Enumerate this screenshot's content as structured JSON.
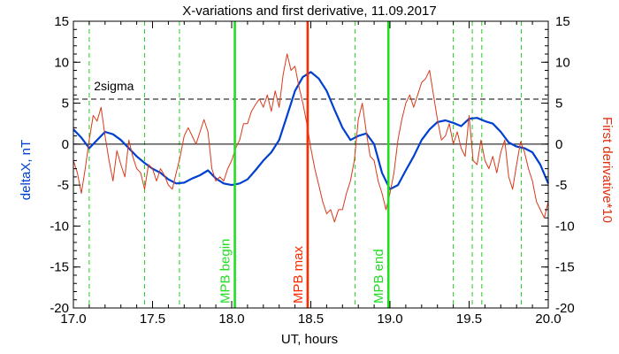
{
  "chart_data": {
    "type": "line",
    "title": "X-variations and first derivative, 11.09.2017",
    "xlabel": "UT, hours",
    "ylabel_left": "deltaX, nT",
    "ylabel_right": "First derivative*10",
    "xlim": [
      17.0,
      20.0
    ],
    "ylim": [
      -20,
      15
    ],
    "x_ticks": [
      "17.0",
      "17.5",
      "18.0",
      "18.5",
      "19.0",
      "19.5",
      "20.0"
    ],
    "y_ticks": [
      "-20",
      "-15",
      "-10",
      "-5",
      "0",
      "5",
      "10",
      "15"
    ],
    "sigma_label": "2sigma",
    "sigma_level": 5.5,
    "grid": false,
    "colors": {
      "deltaX": "#0040d0",
      "derivative": "#d83a1a",
      "mpb_bounds": "#22dd22",
      "mpb_max": "#ff2a00",
      "dashed_green": "#22cc22",
      "sigma": "#000000"
    },
    "vertical_lines": [
      {
        "x": 18.02,
        "label": "MPB begin",
        "kind": "bound"
      },
      {
        "x": 18.48,
        "label": "MPB max",
        "kind": "max"
      },
      {
        "x": 18.99,
        "label": "MPB end",
        "kind": "bound"
      }
    ],
    "dashed_markers": [
      17.1,
      17.45,
      17.67,
      18.78,
      19.4,
      19.52,
      19.58,
      19.83
    ],
    "series": [
      {
        "key": "deltaX",
        "axis": "left",
        "x": [
          17.0,
          17.05,
          17.1,
          17.15,
          17.2,
          17.25,
          17.3,
          17.35,
          17.4,
          17.45,
          17.5,
          17.55,
          17.6,
          17.65,
          17.7,
          17.75,
          17.8,
          17.85,
          17.9,
          17.95,
          18.0,
          18.05,
          18.1,
          18.15,
          18.2,
          18.25,
          18.3,
          18.35,
          18.4,
          18.45,
          18.5,
          18.55,
          18.6,
          18.65,
          18.7,
          18.75,
          18.8,
          18.85,
          18.9,
          18.95,
          19.0,
          19.05,
          19.1,
          19.15,
          19.2,
          19.25,
          19.3,
          19.35,
          19.4,
          19.45,
          19.5,
          19.55,
          19.6,
          19.65,
          19.7,
          19.75,
          19.8,
          19.85,
          19.9,
          19.95,
          20.0
        ],
        "y": [
          1.8,
          0.8,
          -0.5,
          0.5,
          1.5,
          1.2,
          0.5,
          -0.5,
          -1.5,
          -2.3,
          -3.0,
          -3.5,
          -4.3,
          -4.8,
          -4.7,
          -4.2,
          -3.8,
          -3.2,
          -4.2,
          -4.8,
          -5.0,
          -4.8,
          -4.3,
          -3.2,
          -2.0,
          -1.0,
          0.5,
          3.5,
          6.5,
          8.2,
          8.8,
          8.0,
          6.5,
          4.2,
          2.0,
          0.5,
          1.0,
          1.3,
          0.0,
          -3.5,
          -5.5,
          -5.0,
          -3.2,
          -1.5,
          0.5,
          1.8,
          2.7,
          2.9,
          2.6,
          2.2,
          3.1,
          3.2,
          2.8,
          2.5,
          1.5,
          0.2,
          -0.3,
          -0.5,
          -1.0,
          -2.5,
          -4.8
        ]
      },
      {
        "key": "derivative",
        "axis": "right",
        "x": [
          17.0,
          17.025,
          17.05,
          17.075,
          17.1,
          17.125,
          17.15,
          17.175,
          17.2,
          17.225,
          17.25,
          17.275,
          17.3,
          17.325,
          17.35,
          17.375,
          17.4,
          17.425,
          17.45,
          17.475,
          17.5,
          17.525,
          17.55,
          17.575,
          17.6,
          17.625,
          17.65,
          17.675,
          17.7,
          17.725,
          17.75,
          17.775,
          17.8,
          17.825,
          17.85,
          17.875,
          17.9,
          17.925,
          17.95,
          17.975,
          18.0,
          18.025,
          18.05,
          18.075,
          18.1,
          18.125,
          18.15,
          18.175,
          18.2,
          18.225,
          18.25,
          18.275,
          18.3,
          18.325,
          18.35,
          18.375,
          18.4,
          18.425,
          18.45,
          18.475,
          18.5,
          18.525,
          18.55,
          18.575,
          18.6,
          18.625,
          18.65,
          18.675,
          18.7,
          18.725,
          18.75,
          18.775,
          18.8,
          18.825,
          18.85,
          18.875,
          18.9,
          18.925,
          18.95,
          18.975,
          19.0,
          19.025,
          19.05,
          19.075,
          19.1,
          19.125,
          19.15,
          19.175,
          19.2,
          19.225,
          19.25,
          19.275,
          19.3,
          19.325,
          19.35,
          19.375,
          19.4,
          19.425,
          19.45,
          19.475,
          19.5,
          19.525,
          19.55,
          19.575,
          19.6,
          19.625,
          19.65,
          19.675,
          19.7,
          19.725,
          19.75,
          19.775,
          19.8,
          19.825,
          19.85,
          19.875,
          19.9,
          19.925,
          19.95,
          19.975,
          20.0
        ],
        "y": [
          -2.0,
          -3.5,
          -6.0,
          -3.0,
          0.5,
          3.5,
          2.8,
          4.5,
          1.0,
          -2.0,
          -4.5,
          -0.8,
          -2.5,
          -4.0,
          0.5,
          -1.5,
          -3.0,
          -3.5,
          -5.5,
          -2.5,
          -3.0,
          -4.5,
          -3.0,
          -3.8,
          -5.0,
          -5.5,
          -3.5,
          -1.5,
          1.0,
          2.0,
          1.0,
          0.0,
          1.5,
          3.0,
          1.5,
          -3.0,
          -4.5,
          -4.0,
          -4.5,
          -3.0,
          -2.0,
          -0.5,
          0.5,
          2.5,
          2.5,
          4.0,
          4.8,
          5.5,
          4.5,
          6.0,
          4.0,
          6.5,
          4.5,
          8.5,
          11.0,
          9.0,
          9.5,
          7.0,
          5.0,
          2.5,
          -0.5,
          -3.0,
          -5.0,
          -7.0,
          -8.5,
          -8.0,
          -9.5,
          -8.0,
          -8.0,
          -6.0,
          -4.5,
          -2.0,
          3.0,
          5.0,
          1.5,
          -1.5,
          -2.0,
          -4.5,
          -6.0,
          -8.0,
          -6.0,
          -3.5,
          0.5,
          3.0,
          5.0,
          6.0,
          4.5,
          6.0,
          7.5,
          8.0,
          9.0,
          6.0,
          3.0,
          0.5,
          1.0,
          2.5,
          0.0,
          1.5,
          -0.5,
          -1.5,
          3.5,
          -2.0,
          -2.5,
          0.5,
          -2.0,
          -3.0,
          -1.5,
          -3.5,
          -1.0,
          0.5,
          -4.0,
          -5.5,
          -2.5,
          0.3,
          -1.0,
          -3.0,
          -4.5,
          -7.0,
          -8.0,
          -9.0,
          -7.0
        ]
      }
    ]
  }
}
